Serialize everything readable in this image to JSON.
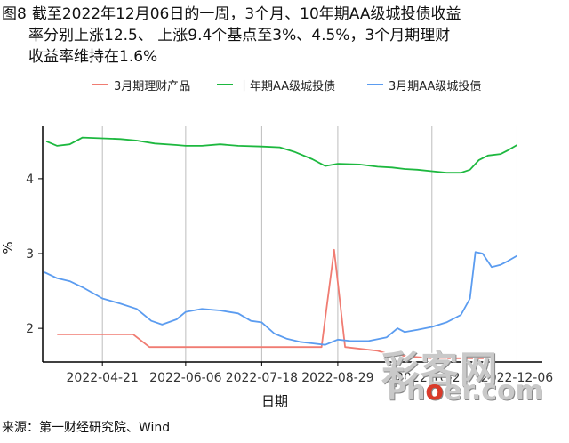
{
  "title": {
    "prefix": "图8",
    "lines": [
      "截至2022年12月06日的一周，3个月、10年期AA级城投债收益",
      "率分别上涨12.5、 上涨9.4个基点至3%、4.5%，3个月期理财",
      "收益率维持在1.6%"
    ]
  },
  "source": "来源：第一财经研究院、Wind",
  "watermark": {
    "cn": "彩客网",
    "en_pre": "Ph",
    "en_dot": "o",
    "en_post": "er.com"
  },
  "chart_data": {
    "type": "line",
    "title": "",
    "xlabel": "日期",
    "ylabel": "%",
    "xlim": [
      "2022-03-19",
      "2022-12-20"
    ],
    "ylim": [
      1.55,
      4.7
    ],
    "x_ticks": [
      "2022-04-21",
      "2022-06-06",
      "2022-07-18",
      "2022-08-29",
      "2022-10-20",
      "2022-12-06"
    ],
    "y_ticks": [
      2,
      3,
      4
    ],
    "grid": "vertical",
    "legend_position": "top",
    "series": [
      {
        "name": "3月期理财产品",
        "color": "#f07c72",
        "points": [
          [
            "2022-03-27",
            1.92
          ],
          [
            "2022-05-08",
            1.92
          ],
          [
            "2022-05-17",
            1.75
          ],
          [
            "2022-06-06",
            1.75
          ],
          [
            "2022-07-18",
            1.75
          ],
          [
            "2022-08-20",
            1.75
          ],
          [
            "2022-08-27",
            3.05
          ],
          [
            "2022-09-02",
            1.75
          ],
          [
            "2022-09-20",
            1.7
          ],
          [
            "2022-09-27",
            1.65
          ],
          [
            "2022-10-10",
            1.62
          ],
          [
            "2022-10-20",
            1.6
          ],
          [
            "2022-11-10",
            1.6
          ],
          [
            "2022-11-20",
            1.6
          ]
        ]
      },
      {
        "name": "十年期AA级城投债",
        "color": "#1db83f",
        "points": [
          [
            "2022-03-21",
            4.5
          ],
          [
            "2022-03-27",
            4.44
          ],
          [
            "2022-04-03",
            4.46
          ],
          [
            "2022-04-10",
            4.55
          ],
          [
            "2022-04-21",
            4.54
          ],
          [
            "2022-05-01",
            4.53
          ],
          [
            "2022-05-10",
            4.51
          ],
          [
            "2022-05-20",
            4.47
          ],
          [
            "2022-06-01",
            4.45
          ],
          [
            "2022-06-06",
            4.44
          ],
          [
            "2022-06-15",
            4.44
          ],
          [
            "2022-06-25",
            4.46
          ],
          [
            "2022-07-05",
            4.44
          ],
          [
            "2022-07-18",
            4.43
          ],
          [
            "2022-07-28",
            4.42
          ],
          [
            "2022-08-05",
            4.36
          ],
          [
            "2022-08-15",
            4.26
          ],
          [
            "2022-08-22",
            4.17
          ],
          [
            "2022-08-29",
            4.2
          ],
          [
            "2022-09-10",
            4.19
          ],
          [
            "2022-09-20",
            4.16
          ],
          [
            "2022-09-28",
            4.15
          ],
          [
            "2022-10-05",
            4.13
          ],
          [
            "2022-10-12",
            4.12
          ],
          [
            "2022-10-20",
            4.1
          ],
          [
            "2022-10-28",
            4.08
          ],
          [
            "2022-11-05",
            4.08
          ],
          [
            "2022-11-10",
            4.12
          ],
          [
            "2022-11-15",
            4.25
          ],
          [
            "2022-11-20",
            4.31
          ],
          [
            "2022-11-27",
            4.33
          ],
          [
            "2022-12-01",
            4.38
          ],
          [
            "2022-12-06",
            4.45
          ]
        ]
      },
      {
        "name": "3月期AA级城投债",
        "color": "#5b9cf0",
        "points": [
          [
            "2022-03-20",
            2.75
          ],
          [
            "2022-03-27",
            2.67
          ],
          [
            "2022-04-03",
            2.63
          ],
          [
            "2022-04-10",
            2.55
          ],
          [
            "2022-04-21",
            2.4
          ],
          [
            "2022-05-01",
            2.33
          ],
          [
            "2022-05-10",
            2.26
          ],
          [
            "2022-05-18",
            2.1
          ],
          [
            "2022-05-24",
            2.05
          ],
          [
            "2022-06-01",
            2.12
          ],
          [
            "2022-06-06",
            2.22
          ],
          [
            "2022-06-15",
            2.26
          ],
          [
            "2022-06-25",
            2.24
          ],
          [
            "2022-07-05",
            2.2
          ],
          [
            "2022-07-12",
            2.1
          ],
          [
            "2022-07-18",
            2.08
          ],
          [
            "2022-07-25",
            1.93
          ],
          [
            "2022-08-01",
            1.86
          ],
          [
            "2022-08-08",
            1.82
          ],
          [
            "2022-08-15",
            1.8
          ],
          [
            "2022-08-22",
            1.78
          ],
          [
            "2022-08-29",
            1.85
          ],
          [
            "2022-09-05",
            1.83
          ],
          [
            "2022-09-15",
            1.83
          ],
          [
            "2022-09-25",
            1.88
          ],
          [
            "2022-10-01",
            2.0
          ],
          [
            "2022-10-05",
            1.95
          ],
          [
            "2022-10-12",
            1.98
          ],
          [
            "2022-10-20",
            2.02
          ],
          [
            "2022-10-28",
            2.08
          ],
          [
            "2022-11-05",
            2.18
          ],
          [
            "2022-11-10",
            2.4
          ],
          [
            "2022-11-13",
            3.02
          ],
          [
            "2022-11-17",
            3.0
          ],
          [
            "2022-11-22",
            2.82
          ],
          [
            "2022-11-27",
            2.85
          ],
          [
            "2022-12-01",
            2.9
          ],
          [
            "2022-12-06",
            2.97
          ]
        ]
      }
    ]
  }
}
